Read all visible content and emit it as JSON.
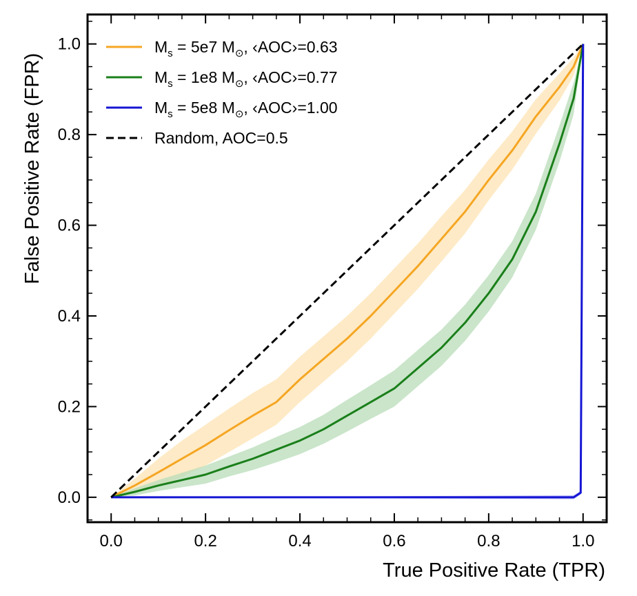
{
  "chart_data": {
    "type": "line",
    "title": "",
    "xlabel": "True Positive Rate (TPR)",
    "ylabel": "False Positive Rate (FPR)",
    "xlim": [
      -0.05,
      1.05
    ],
    "ylim": [
      -0.055,
      1.065
    ],
    "xticks": [
      0.0,
      0.2,
      0.4,
      0.6,
      0.8,
      1.0
    ],
    "yticks": [
      0.0,
      0.2,
      0.4,
      0.6,
      0.8,
      1.0
    ],
    "xtick_labels": [
      "0.0",
      "0.2",
      "0.4",
      "0.6",
      "0.8",
      "1.0"
    ],
    "ytick_labels": [
      "0.0",
      "0.2",
      "0.4",
      "0.6",
      "0.8",
      "1.0"
    ],
    "legend_position": "top-left",
    "series": [
      {
        "name": "M_s = 5e7 M_sun, <AOC>=0.63",
        "legend": {
          "main": "M",
          "sub": "s",
          "eq": " = 5e7 M",
          "sun": "⊙",
          "rest": ", ‹AOC›=0.63"
        },
        "color": "#f5a623",
        "band_color": "#fde3b3",
        "x": [
          0.0,
          0.05,
          0.1,
          0.15,
          0.2,
          0.25,
          0.3,
          0.35,
          0.4,
          0.45,
          0.5,
          0.55,
          0.6,
          0.65,
          0.7,
          0.75,
          0.8,
          0.85,
          0.9,
          0.95,
          0.98,
          1.0
        ],
        "y": [
          0.0,
          0.026,
          0.055,
          0.085,
          0.115,
          0.148,
          0.18,
          0.21,
          0.26,
          0.305,
          0.35,
          0.4,
          0.455,
          0.51,
          0.57,
          0.63,
          0.7,
          0.765,
          0.84,
          0.905,
          0.95,
          1.0
        ],
        "band": [
          0.0,
          0.015,
          0.03,
          0.04,
          0.045,
          0.048,
          0.05,
          0.05,
          0.05,
          0.05,
          0.05,
          0.05,
          0.05,
          0.05,
          0.05,
          0.048,
          0.045,
          0.042,
          0.038,
          0.03,
          0.02,
          0.0
        ]
      },
      {
        "name": "M_s = 1e8 M_sun, <AOC>=0.77",
        "legend": {
          "main": "M",
          "sub": "s",
          "eq": " = 1e8 M",
          "sun": "⊙",
          "rest": ", ‹AOC›=0.77"
        },
        "color": "#1a7f1a",
        "band_color": "#b8dcb8",
        "x": [
          0.0,
          0.05,
          0.1,
          0.15,
          0.2,
          0.25,
          0.3,
          0.35,
          0.4,
          0.45,
          0.5,
          0.55,
          0.6,
          0.65,
          0.7,
          0.75,
          0.8,
          0.85,
          0.9,
          0.95,
          0.98,
          1.0
        ],
        "y": [
          0.0,
          0.012,
          0.026,
          0.038,
          0.05,
          0.068,
          0.085,
          0.105,
          0.125,
          0.15,
          0.18,
          0.21,
          0.24,
          0.285,
          0.33,
          0.385,
          0.45,
          0.525,
          0.63,
          0.78,
          0.88,
          1.0
        ],
        "band": [
          0.0,
          0.008,
          0.012,
          0.016,
          0.02,
          0.022,
          0.025,
          0.028,
          0.03,
          0.032,
          0.035,
          0.037,
          0.04,
          0.04,
          0.04,
          0.04,
          0.04,
          0.04,
          0.04,
          0.04,
          0.035,
          0.0
        ]
      },
      {
        "name": "M_s = 5e8 M_sun, <AOC>=1.00",
        "legend": {
          "main": "M",
          "sub": "s",
          "eq": " = 5e8 M",
          "sun": "⊙",
          "rest": ", ‹AOC›=1.00"
        },
        "color": "#1515d4",
        "band_color": "#9a9af0",
        "x": [
          0.0,
          0.5,
          0.98,
          0.995,
          1.0
        ],
        "y": [
          0.0,
          0.0,
          0.0,
          0.01,
          1.0
        ],
        "band": [
          0.0,
          0.002,
          0.004,
          0.004,
          0.0
        ]
      },
      {
        "name": "Random, AOC=0.5",
        "legend": {
          "main": "Random, AOC=0.5",
          "sub": "",
          "eq": "",
          "sun": "",
          "rest": ""
        },
        "color": "#000000",
        "dashed": true,
        "x": [
          0.0,
          1.0
        ],
        "y": [
          0.0,
          1.0
        ]
      }
    ]
  }
}
